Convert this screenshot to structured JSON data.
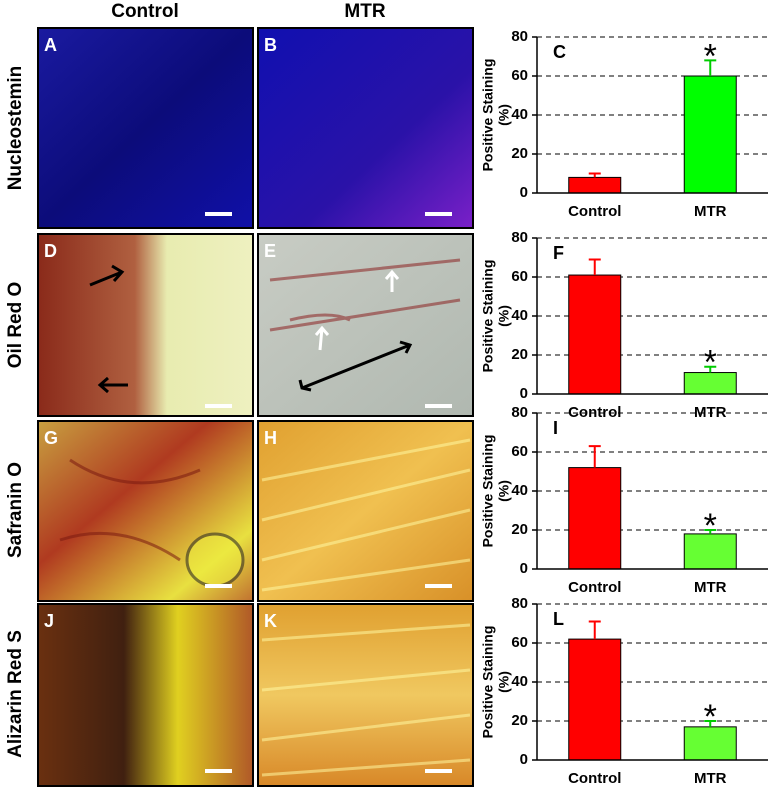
{
  "column_headers": [
    "Control",
    "MTR"
  ],
  "row_labels": [
    "Nucleostemin",
    "Oil Red O",
    "Safranin O",
    "Alizarin Red S"
  ],
  "image_panels": [
    "A",
    "B",
    "D",
    "E",
    "G",
    "H",
    "J",
    "K"
  ],
  "chart_data": [
    {
      "type": "bar",
      "panel_label": "C",
      "ylabel": "Positive Staining",
      "ylabel_unit": "(%)",
      "categories": [
        "Control",
        "MTR"
      ],
      "values": [
        8,
        60
      ],
      "errors": [
        2,
        8
      ],
      "colors": [
        "#ff0000",
        "#00ff00"
      ],
      "annotation": "*",
      "ylim": [
        0,
        80
      ],
      "yticks": [
        0,
        20,
        40,
        60,
        80
      ],
      "grid": true
    },
    {
      "type": "bar",
      "panel_label": "F",
      "ylabel": "Positive Staining",
      "ylabel_unit": "(%)",
      "categories": [
        "Control",
        "MTR"
      ],
      "values": [
        61,
        11
      ],
      "errors": [
        8,
        3
      ],
      "colors": [
        "#ff0000",
        "#66ff33"
      ],
      "annotation": "*",
      "ylim": [
        0,
        80
      ],
      "yticks": [
        0,
        20,
        40,
        60,
        80
      ],
      "grid": true
    },
    {
      "type": "bar",
      "panel_label": "I",
      "ylabel": "Positive Staining",
      "ylabel_unit": "(%)",
      "categories": [
        "Control",
        "MTR"
      ],
      "values": [
        52,
        18
      ],
      "errors": [
        11,
        2
      ],
      "colors": [
        "#ff0000",
        "#66ff33"
      ],
      "annotation": "*",
      "ylim": [
        0,
        80
      ],
      "yticks": [
        0,
        20,
        40,
        60,
        80
      ],
      "grid": true
    },
    {
      "type": "bar",
      "panel_label": "L",
      "ylabel": "Positive Staining",
      "ylabel_unit": "(%)",
      "categories": [
        "Control",
        "MTR"
      ],
      "values": [
        62,
        17
      ],
      "errors": [
        9,
        3
      ],
      "colors": [
        "#ff0000",
        "#66ff33"
      ],
      "annotation": "*",
      "ylim": [
        0,
        80
      ],
      "yticks": [
        0,
        20,
        40,
        60,
        80
      ],
      "grid": true
    }
  ]
}
